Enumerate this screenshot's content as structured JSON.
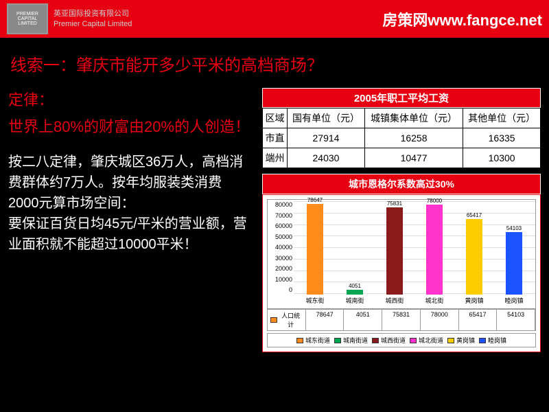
{
  "header": {
    "logo_line1": "PREMIER",
    "logo_line2": "CAPITAL",
    "logo_line3": "LIMITED",
    "company_cn": "英亚国际投资有限公司",
    "company_en": "Premier Capital Limited",
    "site_label": "房策网www.fangce.net"
  },
  "title": "线索一：肇庆市能开多少平米的高档商场？",
  "left": {
    "law_label": "定律：",
    "law_text": "世界上80%的财富由20%的人创造！",
    "body": "按二八定律，肇庆城区36万人，高档消费群体约7万人。按年均服装类消费2000元算市场空间：\n要保证百货日均45元/平米的营业额，营业面积就不能超过10000平米！"
  },
  "table": {
    "title": "2005年职工平均工资",
    "headers": [
      "区域",
      "国有单位（元）",
      "城镇集体单位（元）",
      "其他单位（元）"
    ],
    "rows": [
      [
        "市直",
        "27914",
        "16258",
        "16335"
      ],
      [
        "端州",
        "24030",
        "10477",
        "10300"
      ]
    ]
  },
  "chart": {
    "title": "城市恩格尔系数高过30%",
    "type": "bar",
    "ymax": 80000,
    "yticks": [
      "80000",
      "70000",
      "60000",
      "50000",
      "40000",
      "30000",
      "20000",
      "10000",
      "0"
    ],
    "categories": [
      "城东街",
      "城南街",
      "城西街",
      "城北街",
      "黄岗镇",
      "睦岗镇"
    ],
    "values": [
      78647,
      4051,
      75831,
      78000,
      65417,
      54103
    ],
    "colors": [
      "#ff8c1a",
      "#00a651",
      "#8b1a1a",
      "#ff33cc",
      "#ffcc00",
      "#1a53ff"
    ],
    "row_label": "人口统计",
    "row_values": [
      "78647",
      "4051",
      "75831",
      "78000",
      "65417",
      "54103"
    ],
    "legend_labels": [
      "城东街道",
      "城南街道",
      "城西街道",
      "城北街道",
      "黄岗镇",
      "睦岗镇"
    ]
  }
}
